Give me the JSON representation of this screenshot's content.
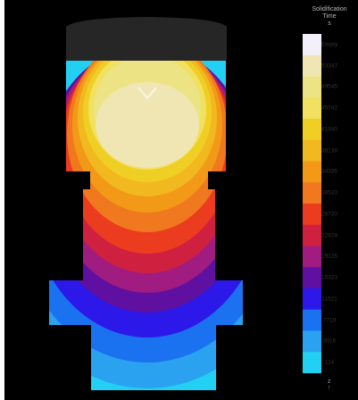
{
  "legend": {
    "title_lines": [
      "Solidification",
      "Time",
      "s"
    ],
    "labels": [
      "Empty",
      "53347",
      "49545",
      "45742",
      "41940",
      "38138",
      "34335",
      "30533",
      "26730",
      "22928",
      "19126",
      "15323",
      "11521",
      "7719",
      "3916",
      "114"
    ],
    "colors": [
      "#f4f0fa",
      "#f0e6b4",
      "#ece484",
      "#f2e060",
      "#f0cf24",
      "#f2b820",
      "#f29a18",
      "#f0781e",
      "#ec3c20",
      "#d02040",
      "#a01c80",
      "#6010a0",
      "#2c18e8",
      "#1a72f0",
      "#2aa2f0",
      "#22d0f4"
    ]
  },
  "axis_glyph": [
    "z",
    "↑"
  ],
  "colors": {
    "background": "#000000",
    "riser_gray": "#262626"
  }
}
